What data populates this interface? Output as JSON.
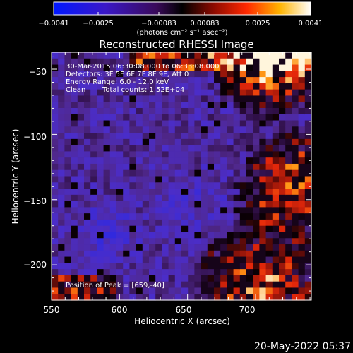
{
  "chart_data": {
    "type": "heatmap",
    "title": "Reconstructed RHESSI Image",
    "xlabel": "Heliocentric X (arcsec)",
    "ylabel": "Heliocentric Y (arcsec)",
    "xlim": [
      550,
      741
    ],
    "ylim": [
      -227,
      -37
    ],
    "x_ticks": [
      550,
      600,
      650,
      700
    ],
    "y_ticks": [
      -50,
      -100,
      -150,
      -200
    ],
    "x_tick_labels": [
      "550",
      "600",
      "650",
      "700"
    ],
    "y_tick_labels": [
      "−50",
      "−100",
      "−150",
      "−200"
    ],
    "colorbar": {
      "min": -0.0041,
      "max": 0.0041,
      "tick_labels": [
        "−0.0041",
        "−0.0025",
        "−0.00083",
        "0.00083",
        "0.0025",
        "0.0041"
      ],
      "unit_label": "(photons cm⁻² s⁻¹ asec⁻²)"
    },
    "annotations": {
      "time_range": "30-Mar-2015 06:30:08.000 to 06:33:08.000",
      "detectors": "Detectors: 3F 5F 6F 7F 8F 9F, Att 0",
      "energy": "Energy Range: 6.0 - 12.0 keV",
      "clean_label": "Clean",
      "total_counts": "Total counts: 1.52E+04",
      "peak": "Position of Peak = [659,-40]"
    },
    "footer_date": "20-May-2022 05:37",
    "grid": false,
    "colormap": "blue-purple-black-red-yellow-white",
    "peak_position": [
      659,
      -40
    ]
  }
}
